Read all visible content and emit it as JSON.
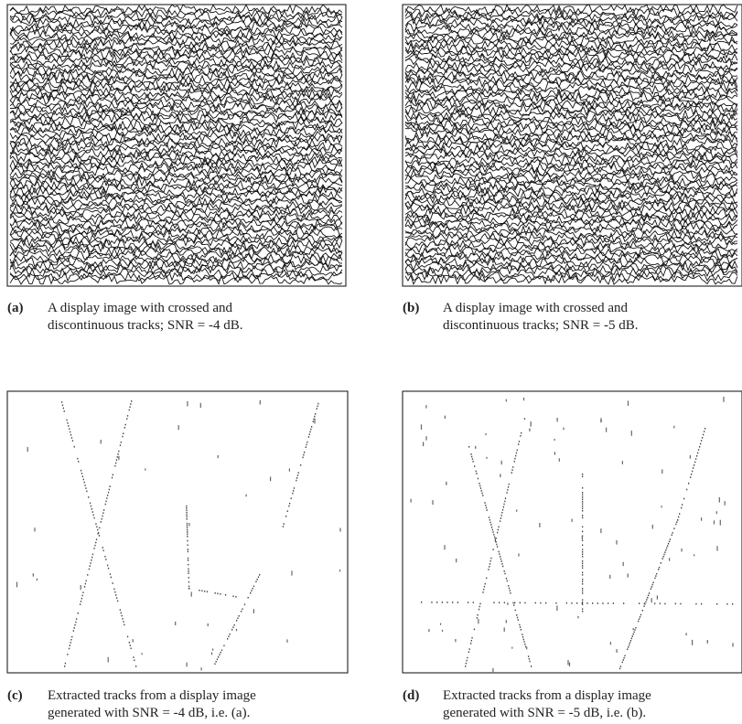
{
  "panels": [
    {
      "label": "(a)",
      "lines": [
        "A display image with crossed and",
        "discontinuous tracks;  SNR = -4 dB."
      ]
    },
    {
      "label": "(b)",
      "lines": [
        "A display image with crossed and",
        "discontinuous tracks;  SNR = -5 dB."
      ]
    },
    {
      "label": "(c)",
      "lines": [
        "Extracted tracks from a display image",
        "generated with SNR = -4 dB, i.e. (a)."
      ]
    },
    {
      "label": "(d)",
      "lines": [
        "Extracted tracks from a display image",
        "generated with SNR = -5 dB, i.e. (b)."
      ]
    }
  ]
}
